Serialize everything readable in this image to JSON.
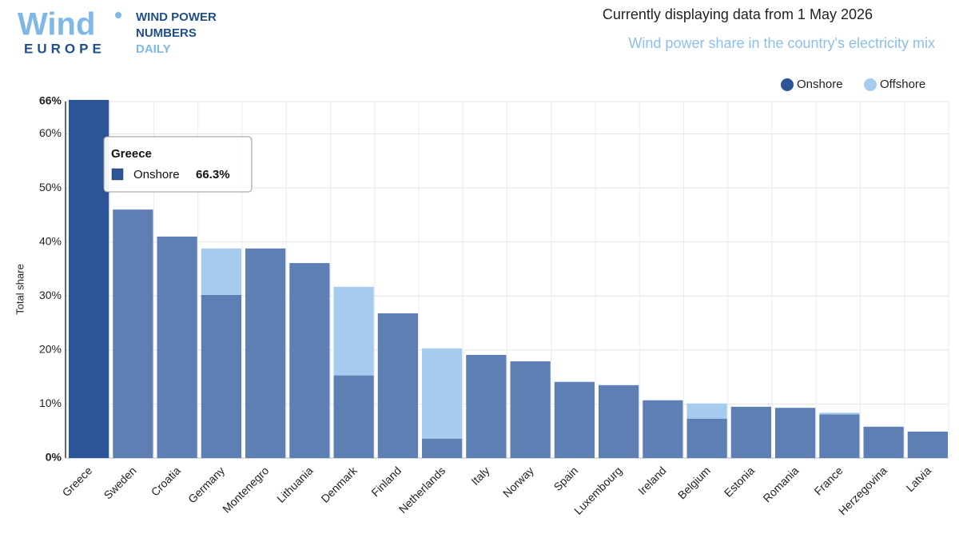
{
  "header": {
    "logo_word": "Wind",
    "logo_sub": "EUROPE",
    "brand_lines": [
      "WIND POWER",
      "NUMBERS",
      "DAILY"
    ],
    "date_text": "Currently displaying data from 1 May 2026"
  },
  "chart_data": {
    "type": "stacked_bar",
    "subtitle": "Wind power share in the country's electricity mix",
    "y_label": "Total share",
    "categories": [
      "Greece",
      "Sweden",
      "Croatia",
      "Germany",
      "Montenegro",
      "Lithuania",
      "Denmark",
      "Finland",
      "Netherlands",
      "Italy",
      "Norway",
      "Spain",
      "Luxembourg",
      "Ireland",
      "Belgium",
      "Estonia",
      "Romania",
      "France",
      "Herzegovina",
      "Latvia"
    ],
    "series": [
      {
        "name": "Onshore",
        "color": "#5e7fb4",
        "hover_color": "#2b5596",
        "values": [
          66.3,
          46,
          41,
          30.2,
          38.8,
          36.1,
          15.3,
          26.8,
          3.6,
          19.1,
          17.9,
          14.1,
          13.5,
          10.7,
          7.3,
          9.5,
          9.3,
          8.1,
          5.8,
          4.9
        ]
      },
      {
        "name": "Offshore",
        "color": "#a5cbee",
        "values": [
          0,
          0,
          0,
          8.6,
          0,
          0,
          16.4,
          0,
          16.7,
          0,
          0,
          0,
          0,
          0,
          2.8,
          0,
          0,
          0.3,
          0,
          0
        ]
      }
    ],
    "ylim": [
      0,
      66
    ],
    "yticks": [
      {
        "value": 0,
        "label": "0%"
      },
      {
        "value": 10,
        "label": "10%"
      },
      {
        "value": 20,
        "label": "20%"
      },
      {
        "value": 30,
        "label": "30%"
      },
      {
        "value": 40,
        "label": "40%"
      },
      {
        "value": 50,
        "label": "50%"
      },
      {
        "value": 60,
        "label": "60%"
      },
      {
        "value": 66,
        "label": "66%"
      }
    ],
    "grid": true,
    "legend": "top-right",
    "tooltip": {
      "value_label": "66.3%"
    }
  }
}
